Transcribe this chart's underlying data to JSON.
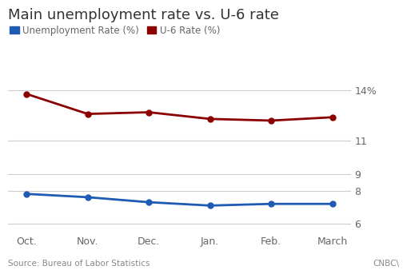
{
  "months": [
    "Oct.",
    "Nov.",
    "Dec.",
    "Jan.",
    "Feb.",
    "March"
  ],
  "unemployment_rate": [
    7.8,
    7.6,
    7.3,
    7.1,
    7.2,
    7.2
  ],
  "u6_rate": [
    13.8,
    12.6,
    12.7,
    12.3,
    12.2,
    12.4
  ],
  "unemployment_color": "#1f5ab5",
  "u6_color": "#8b0000",
  "title": "Main unemployment rate vs. U-6 rate",
  "title_fontsize": 13,
  "legend_label_unemployment": "Unemployment Rate (%)",
  "legend_label_u6": "U-6 Rate (%)",
  "yticks": [
    6,
    8,
    9,
    11,
    14
  ],
  "ytick_labels": [
    "6",
    "8",
    "9",
    "11",
    "14%"
  ],
  "ylim": [
    5.5,
    14.9
  ],
  "source_text": "Source: Bureau of Labor Statistics",
  "source_right": "CNBC\\",
  "background_color": "#ffffff",
  "grid_color": "#cccccc",
  "marker_size": 5,
  "line_width": 2.0,
  "title_color": "#333333",
  "tick_color": "#666666"
}
